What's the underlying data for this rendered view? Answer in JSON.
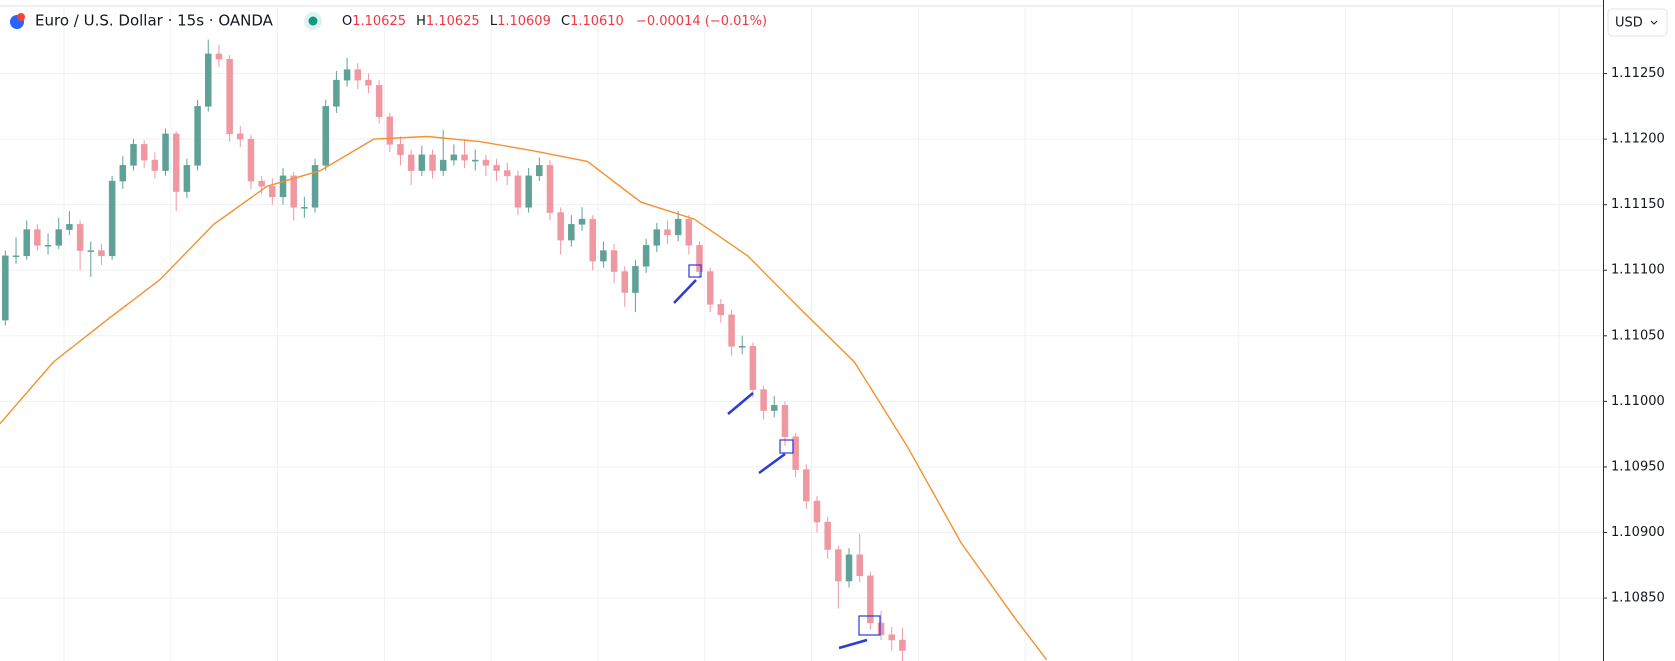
{
  "chart_data": {
    "type": "candlestick",
    "symbol": "Euro / U.S. Dollar · 15s · OANDA",
    "legend": {
      "items": [
        {
          "label": "O",
          "value": "1.10625"
        },
        {
          "label": "H",
          "value": "1.10625"
        },
        {
          "label": "L",
          "value": "1.10609"
        },
        {
          "label": "C",
          "value": "1.10610"
        }
      ],
      "change": "−0.00014 (−0.01%)"
    },
    "currency": "USD",
    "up_color": "#5fa196",
    "down_color": "#ef98a2",
    "grid": true,
    "xlim": [
      -0.5,
      149.6
    ],
    "ylim": [
      1.10802,
      1.113
    ],
    "yticks": [
      {
        "value": 1.1125,
        "label": "1.11250"
      },
      {
        "value": 1.112,
        "label": "1.11200"
      },
      {
        "value": 1.1115,
        "label": "1.11150"
      },
      {
        "value": 1.111,
        "label": "1.11100"
      },
      {
        "value": 1.1105,
        "label": "1.11050"
      },
      {
        "value": 1.11,
        "label": "1.11000"
      },
      {
        "value": 1.1095,
        "label": "1.10950"
      },
      {
        "value": 1.109,
        "label": "1.10900"
      },
      {
        "value": 1.1085,
        "label": "1.10850"
      }
    ],
    "open": [
      1.11062,
      1.11111,
      1.11111,
      1.11131,
      1.11119,
      1.11119,
      1.11131,
      1.11135,
      1.11115,
      1.11115,
      1.11111,
      1.11168,
      1.1118,
      1.11196,
      1.11184,
      1.11176,
      1.11204,
      1.1116,
      1.1118,
      1.11225,
      1.11265,
      1.11261,
      1.11204,
      1.112,
      1.11168,
      1.11164,
      1.11156,
      1.11172,
      1.11148,
      1.11148,
      1.1118,
      1.11225,
      1.11245,
      1.11253,
      1.11245,
      1.11241,
      1.11217,
      1.11196,
      1.11188,
      1.11176,
      1.11188,
      1.11176,
      1.11184,
      1.11188,
      1.11184,
      1.11184,
      1.1118,
      1.11176,
      1.11172,
      1.11148,
      1.11172,
      1.1118,
      1.11144,
      1.11123,
      1.11135,
      1.11139,
      1.11107,
      1.11115,
      1.11099,
      1.11083,
      1.11103,
      1.11119,
      1.11131,
      1.11127,
      1.11139,
      1.11119,
      1.11099,
      1.11074,
      1.11066,
      1.11042,
      1.11042,
      1.11009,
      1.10993,
      1.10997,
      1.10973,
      1.10948,
      1.10924,
      1.10908,
      1.10887,
      1.10863,
      1.10883,
      1.10867,
      1.10831,
      1.10822,
      1.10818
    ],
    "high": [
      1.11115,
      1.11125,
      1.11138,
      1.11135,
      1.11128,
      1.1114,
      1.11145,
      1.11138,
      1.11122,
      1.1112,
      1.11172,
      1.11187,
      1.112,
      1.11199,
      1.1119,
      1.11208,
      1.11206,
      1.11185,
      1.1123,
      1.11276,
      1.11272,
      1.11264,
      1.1121,
      1.11203,
      1.11172,
      1.1117,
      1.11178,
      1.11175,
      1.11156,
      1.11185,
      1.1123,
      1.11252,
      1.11262,
      1.11258,
      1.1125,
      1.11245,
      1.1122,
      1.11202,
      1.11192,
      1.11195,
      1.11192,
      1.11207,
      1.11196,
      1.112,
      1.11192,
      1.11188,
      1.11185,
      1.11182,
      1.11176,
      1.11178,
      1.11186,
      1.11184,
      1.11148,
      1.11142,
      1.11148,
      1.11142,
      1.11122,
      1.1112,
      1.11103,
      1.11108,
      1.11124,
      1.11136,
      1.11138,
      1.11145,
      1.11142,
      1.11122,
      1.11102,
      1.11078,
      1.1107,
      1.1105,
      1.11045,
      1.11012,
      1.11004,
      1.11,
      1.10976,
      1.10952,
      1.10928,
      1.10912,
      1.1089,
      1.10888,
      1.10899,
      1.1087,
      1.1084,
      1.10828,
      1.10827
    ],
    "low": [
      1.11058,
      1.11105,
      1.11108,
      1.11115,
      1.11112,
      1.11116,
      1.11127,
      1.111,
      1.11095,
      1.11104,
      1.11108,
      1.11162,
      1.11176,
      1.11178,
      1.1117,
      1.11172,
      1.11145,
      1.11155,
      1.11176,
      1.11221,
      1.11255,
      1.11198,
      1.11194,
      1.11162,
      1.11158,
      1.1115,
      1.1115,
      1.11138,
      1.1114,
      1.11144,
      1.11176,
      1.1122,
      1.1124,
      1.11238,
      1.11235,
      1.11212,
      1.1119,
      1.1118,
      1.11165,
      1.11172,
      1.1117,
      1.11172,
      1.1118,
      1.11178,
      1.11176,
      1.11172,
      1.11168,
      1.11165,
      1.11142,
      1.11144,
      1.11168,
      1.11138,
      1.11112,
      1.11118,
      1.1113,
      1.111,
      1.11102,
      1.1109,
      1.11072,
      1.11068,
      1.11098,
      1.11114,
      1.1112,
      1.11122,
      1.11112,
      1.11094,
      1.11068,
      1.1106,
      1.11035,
      1.11036,
      1.11003,
      1.10986,
      1.10988,
      1.10966,
      1.10942,
      1.10918,
      1.109,
      1.1088,
      1.10842,
      1.10858,
      1.10862,
      1.10826,
      1.10818,
      1.1081,
      1.10802
    ],
    "close": [
      1.11111,
      1.11111,
      1.11131,
      1.11119,
      1.11119,
      1.11131,
      1.11135,
      1.11115,
      1.11115,
      1.11111,
      1.11168,
      1.1118,
      1.11196,
      1.11184,
      1.11176,
      1.11204,
      1.1116,
      1.1118,
      1.11225,
      1.11265,
      1.11261,
      1.11204,
      1.112,
      1.11168,
      1.11164,
      1.11156,
      1.11172,
      1.11148,
      1.11148,
      1.1118,
      1.11225,
      1.11245,
      1.11253,
      1.11245,
      1.11241,
      1.11217,
      1.11196,
      1.11188,
      1.11176,
      1.11188,
      1.11176,
      1.11184,
      1.11188,
      1.11184,
      1.11184,
      1.1118,
      1.11176,
      1.11172,
      1.11148,
      1.11172,
      1.1118,
      1.11144,
      1.11123,
      1.11135,
      1.11139,
      1.11107,
      1.11115,
      1.11099,
      1.11083,
      1.11103,
      1.11119,
      1.11131,
      1.11127,
      1.11139,
      1.11119,
      1.11099,
      1.11074,
      1.11066,
      1.11042,
      1.11042,
      1.11009,
      1.10993,
      1.10997,
      1.10973,
      1.10948,
      1.10924,
      1.10908,
      1.10887,
      1.10863,
      1.10883,
      1.10867,
      1.10831,
      1.10822,
      1.10818,
      1.1081
    ],
    "ma": {
      "color": "#f5912e",
      "x": [
        -0.5,
        4.5,
        9.5,
        14.5,
        19.5,
        24.5,
        29.5,
        34.5,
        39.5,
        44.5,
        49.5,
        54.5,
        59.5,
        64.5,
        69.5,
        74.5,
        79.5,
        84.5,
        89.5,
        94.5,
        97.5
      ],
      "values": [
        1.10983,
        1.1103,
        1.11062,
        1.11093,
        1.11135,
        1.11164,
        1.11176,
        1.112,
        1.11202,
        1.11198,
        1.11191,
        1.11183,
        1.11152,
        1.11139,
        1.11111,
        1.1107,
        1.1103,
        1.10965,
        1.10892,
        1.10835,
        1.10803
      ]
    }
  }
}
